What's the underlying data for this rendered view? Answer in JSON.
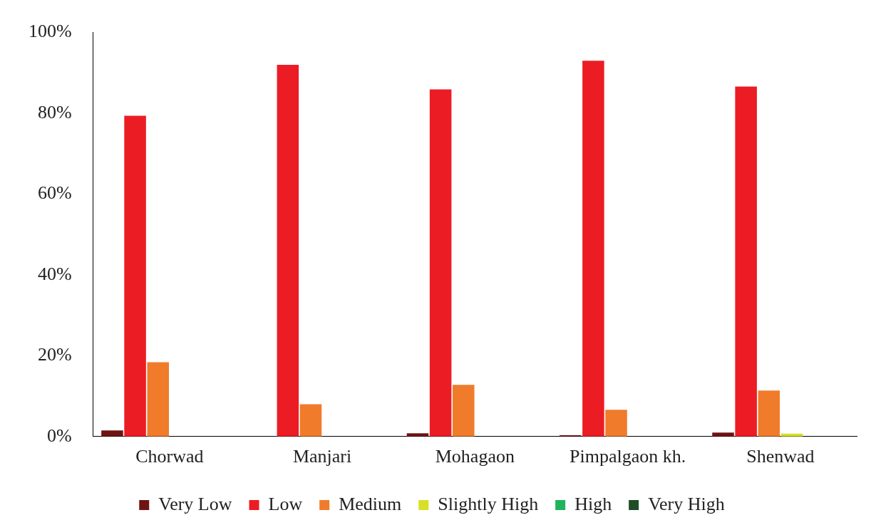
{
  "chart_data": {
    "type": "bar",
    "categories": [
      "Chorwad",
      "Manjari",
      "Mohagaon",
      "Pimpalgaon kh.",
      "Shenwad"
    ],
    "series": [
      {
        "name": "Very Low",
        "color": "#6e1414",
        "values": [
          1.5,
          0,
          0.8,
          0.3,
          1.0
        ]
      },
      {
        "name": "Low",
        "color": "#ec1c24",
        "values": [
          79.4,
          92,
          85.9,
          93,
          86.6
        ]
      },
      {
        "name": "Medium",
        "color": "#f07b2b",
        "values": [
          18.4,
          8.0,
          12.8,
          6.6,
          11.4
        ]
      },
      {
        "name": "Slightly High",
        "color": "#d7e024",
        "values": [
          0,
          0,
          0,
          0,
          0.7
        ]
      },
      {
        "name": "High",
        "color": "#1fb35a",
        "values": [
          0,
          0,
          0,
          0,
          0
        ]
      },
      {
        "name": "Very High",
        "color": "#1e4d26",
        "values": [
          0,
          0,
          0,
          0,
          0
        ]
      }
    ],
    "ylim": [
      0,
      100
    ],
    "yticks": [
      {
        "value": 0,
        "label": "0%"
      },
      {
        "value": 20,
        "label": "20%"
      },
      {
        "value": 40,
        "label": "40%"
      },
      {
        "value": 60,
        "label": "60%"
      },
      {
        "value": 80,
        "label": "80%"
      },
      {
        "value": 100,
        "label": "100%"
      }
    ],
    "grid": false,
    "legend": "bottom"
  }
}
